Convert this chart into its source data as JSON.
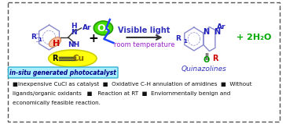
{
  "bg_color": "#ffffff",
  "border_color": "#555555",
  "fig_width": 3.78,
  "fig_height": 1.59,
  "dpi": 100,
  "title_text": "Visible light",
  "subtitle_text": "room temperature",
  "title_color": "#3333bb",
  "subtitle_color": "#9922cc",
  "arrow_color": "#333333",
  "plus_color": "#000000",
  "water_text": "+ 2H",
  "water_sub": "2",
  "water_end": "O",
  "water_color": "#00aa00",
  "quinazoline_label": "Quinazolines",
  "quinazoline_color": "#3333bb",
  "insitu_text": "in-situ generated photocatalyst",
  "insitu_bg": "#aaeeff",
  "insitu_border": "#22aacc",
  "insitu_color": "#000088",
  "bullet_color": "#cc0000",
  "footer_line1": "■Inexpensive CuCl as catalyst  ■  Oxidative C-H annulation of amidines  ■  Without",
  "footer_line2": "ligands/organic oxidants   ■   Reaction at RT  ■  Enviornmentally benign and",
  "footer_line3": "economically feasible reaction.",
  "footer_color": "#111111",
  "r1_color": "#2222bb",
  "ar_color": "#2222bb",
  "h_color": "#2222bb",
  "nh_color": "#2222bb",
  "n_color": "#2222bb",
  "o2_fill": "#44dd00",
  "o2_edge": "#229900",
  "cu_color": "#886600",
  "red_color": "#cc0000",
  "green_o_color": "#009900",
  "ring_color": "#8888cc",
  "yellow_fill": "#ffff00",
  "yellow_edge": "#cccc00",
  "salmon_fill": "#ffbb99",
  "salmon_edge": "#cc7733",
  "bolt_color": "#2244ff"
}
